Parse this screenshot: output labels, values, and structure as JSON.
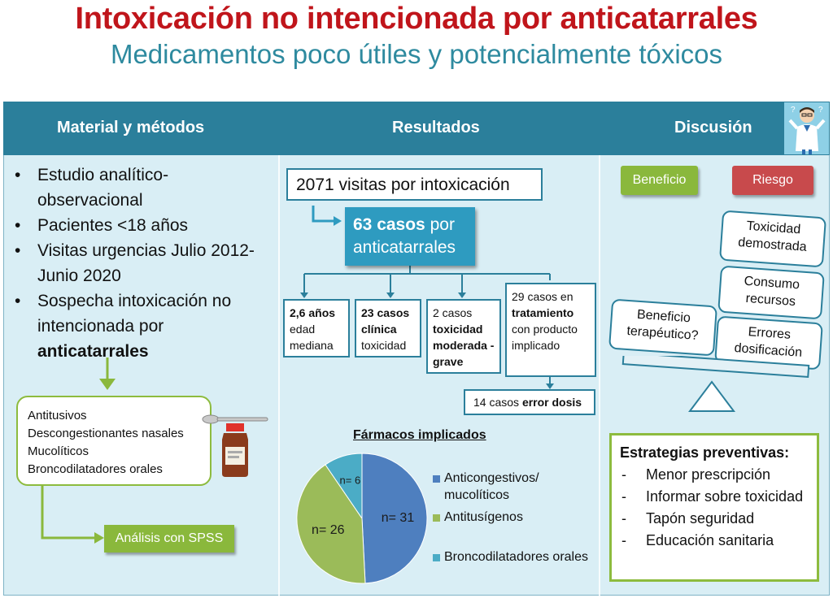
{
  "header": {
    "title": "Intoxicación no intencionada por anticatarrales",
    "subtitle": "Medicamentos poco útiles y potencialmente tóxicos"
  },
  "columns": {
    "methods": "Material y métodos",
    "results": "Resultados",
    "discussion": "Discusión"
  },
  "methods": {
    "bullets": [
      "Estudio analítico-observacional",
      "Pacientes <18 años",
      "Visitas urgencias Julio 2012- Junio 2020",
      "Sospecha intoxicación no intencionada por"
    ],
    "bullet_bold_tail": "anticatarrales",
    "drugs": [
      "Antitusivos",
      "Descongestionantes nasales",
      "Mucolíticos",
      "Broncodilatadores orales"
    ],
    "spss": "Análisis con SPSS"
  },
  "results": {
    "visits": "2071 visitas por intoxicación",
    "cases_bold": "63 casos",
    "cases_rest": "por anticatarrales",
    "b1_bold": "2,6 años",
    "b1_text": "edad mediana",
    "b2_bold": "23 casos clínica",
    "b2_text": "toxicidad",
    "b3_text": "2 casos",
    "b3_bold": "toxicidad moderada -grave",
    "b4_text1": "29 casos en",
    "b4_bold": "tratamiento",
    "b4_text2": "con producto implicado",
    "b5_text": "14 casos",
    "b5_bold": "error dosis"
  },
  "chart_data": {
    "type": "pie",
    "title": "Fármacos implicados",
    "slices": [
      {
        "name": "Anticongestivos/ mucolíticos",
        "value": 31,
        "label": "n= 31",
        "color": "#4e7fbf"
      },
      {
        "name": "Antitusígenos",
        "value": 26,
        "label": "n= 26",
        "color": "#9bbb59"
      },
      {
        "name": "Broncodilatadores orales",
        "value": 6,
        "label": "n= 6",
        "color": "#4bacc6"
      }
    ]
  },
  "discussion": {
    "benefit": "Beneficio",
    "risk": "Riesgo",
    "risk_items": [
      "Toxicidad demostrada",
      "Consumo recursos",
      "Errores dosificación"
    ],
    "benefit_item": "Beneficio terapéutico?",
    "strategies_title": "Estrategias preventivas:",
    "strategies": [
      "Menor prescripción",
      "Informar sobre toxicidad",
      "Tapón seguridad",
      "Educación sanitaria"
    ]
  },
  "colors": {
    "title_red": "#c0151b",
    "subtitle_teal": "#2e8a9f",
    "header_blue": "#2b7f9b",
    "green": "#8ab83c",
    "red": "#c84a4c"
  }
}
